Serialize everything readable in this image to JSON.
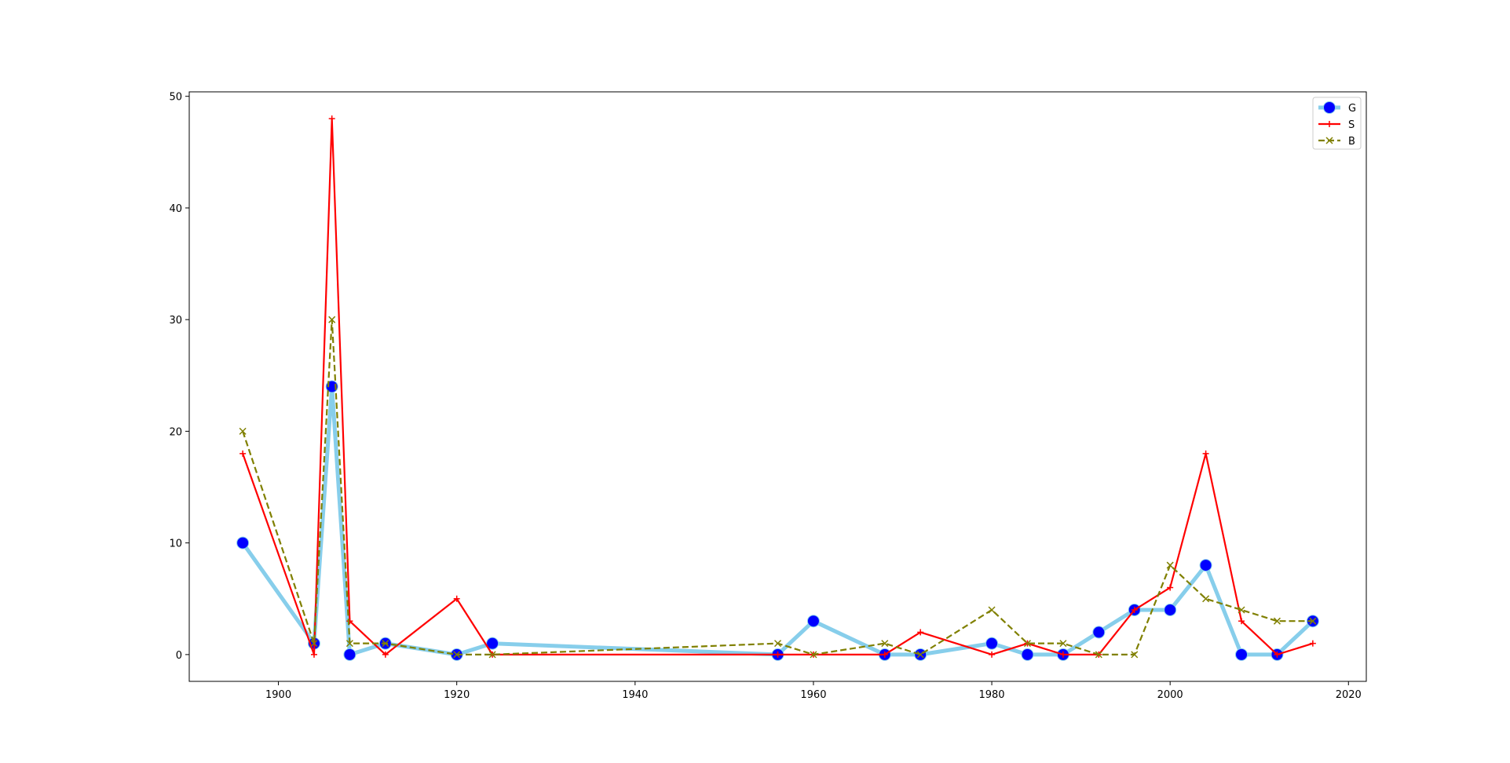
{
  "chart_data": {
    "type": "line",
    "title": "",
    "xlabel": "",
    "ylabel": "",
    "xlim": [
      1890,
      2022
    ],
    "ylim": [
      -2.4,
      50.4
    ],
    "xticks": [
      1900,
      1920,
      1940,
      1960,
      1980,
      2000,
      2020
    ],
    "yticks": [
      0,
      10,
      20,
      30,
      40,
      50
    ],
    "grid": false,
    "legend_position": "top-right",
    "series": [
      {
        "name": "G",
        "color": "#87ceeb",
        "marker_color": "#0000ff",
        "marker": "circle",
        "line_style": "solid",
        "points": [
          [
            1896,
            10
          ],
          [
            1904,
            1
          ],
          [
            1906,
            24
          ],
          [
            1908,
            0
          ],
          [
            1912,
            1
          ],
          [
            1920,
            0
          ],
          [
            1924,
            1
          ],
          [
            1956,
            0
          ],
          [
            1960,
            3
          ],
          [
            1968,
            0
          ],
          [
            1972,
            0
          ],
          [
            1980,
            1
          ],
          [
            1984,
            0
          ],
          [
            1988,
            0
          ],
          [
            1992,
            2
          ],
          [
            1996,
            4
          ],
          [
            2000,
            4
          ],
          [
            2004,
            8
          ],
          [
            2008,
            0
          ],
          [
            2012,
            0
          ],
          [
            2016,
            3
          ]
        ]
      },
      {
        "name": "S",
        "color": "#ff0000",
        "marker": "plus",
        "line_style": "solid",
        "points": [
          [
            1896,
            18
          ],
          [
            1904,
            0
          ],
          [
            1906,
            48
          ],
          [
            1908,
            3
          ],
          [
            1912,
            0
          ],
          [
            1920,
            5
          ],
          [
            1924,
            0
          ],
          [
            1956,
            0
          ],
          [
            1960,
            0
          ],
          [
            1968,
            0
          ],
          [
            1972,
            2
          ],
          [
            1980,
            0
          ],
          [
            1984,
            1
          ],
          [
            1988,
            0
          ],
          [
            1992,
            0
          ],
          [
            1996,
            4
          ],
          [
            2000,
            6
          ],
          [
            2004,
            18
          ],
          [
            2008,
            3
          ],
          [
            2012,
            0
          ],
          [
            2016,
            1
          ]
        ]
      },
      {
        "name": "B",
        "color": "#808000",
        "marker": "x",
        "line_style": "dashed",
        "points": [
          [
            1896,
            20
          ],
          [
            1904,
            1
          ],
          [
            1906,
            30
          ],
          [
            1908,
            1
          ],
          [
            1912,
            1
          ],
          [
            1920,
            0
          ],
          [
            1924,
            0
          ],
          [
            1956,
            1
          ],
          [
            1960,
            0
          ],
          [
            1968,
            1
          ],
          [
            1972,
            0
          ],
          [
            1980,
            4
          ],
          [
            1984,
            1
          ],
          [
            1988,
            1
          ],
          [
            1992,
            0
          ],
          [
            1996,
            0
          ],
          [
            2000,
            8
          ],
          [
            2004,
            5
          ],
          [
            2008,
            4
          ],
          [
            2012,
            3
          ],
          [
            2016,
            3
          ]
        ]
      }
    ]
  }
}
